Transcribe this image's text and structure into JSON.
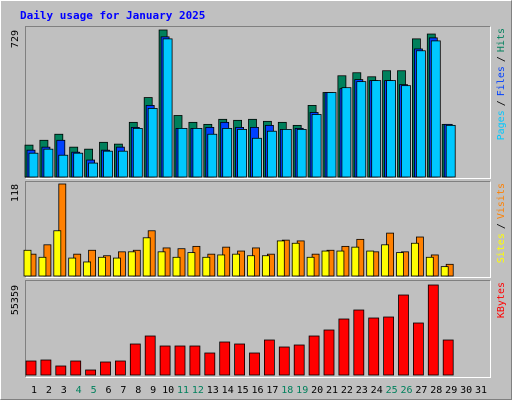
{
  "chart_data": [
    {
      "type": "bar",
      "title": "Daily usage for January 2025",
      "legend_separator": "/",
      "ylim": [
        0,
        729
      ],
      "yticks": [
        729
      ],
      "series": [
        {
          "name": "Hits",
          "color": "#00805c",
          "values": [
            158,
            182,
            212,
            148,
            138,
            172,
            163,
            271,
            394,
            729,
            305,
            271,
            261,
            286,
            281,
            286,
            276,
            271,
            256,
            355,
            419,
            502,
            517,
            497,
            527,
            527,
            685,
            709,
            261,
            null,
            null
          ]
        },
        {
          "name": "Files",
          "color": "#0040ff",
          "values": [
            133,
            148,
            182,
            123,
            84,
            133,
            148,
            246,
            355,
            695,
            241,
            241,
            246,
            271,
            246,
            246,
            256,
            236,
            241,
            320,
            419,
            438,
            483,
            478,
            478,
            458,
            635,
            690,
            261,
            null,
            null
          ]
        },
        {
          "name": "Pages",
          "color": "#00c8ff",
          "values": [
            118,
            138,
            108,
            118,
            69,
            128,
            128,
            241,
            340,
            685,
            241,
            241,
            212,
            241,
            236,
            192,
            227,
            236,
            236,
            310,
            419,
            443,
            473,
            478,
            478,
            453,
            626,
            675,
            256,
            null,
            null
          ]
        }
      ]
    },
    {
      "type": "bar",
      "legend_separator": "/",
      "ylim": [
        0,
        118
      ],
      "yticks": [
        118
      ],
      "series": [
        {
          "name": "Visits",
          "color": "#ff8000",
          "values": [
            28,
            40,
            118,
            28,
            33,
            26,
            31,
            33,
            58,
            36,
            35,
            38,
            28,
            37,
            32,
            36,
            28,
            46,
            45,
            28,
            33,
            38,
            47,
            31,
            55,
            31,
            50,
            27,
            15,
            null,
            null
          ]
        },
        {
          "name": "Sites",
          "color": "#ffff00",
          "values": [
            33,
            24,
            58,
            23,
            18,
            24,
            23,
            31,
            49,
            31,
            24,
            30,
            24,
            27,
            28,
            26,
            26,
            45,
            42,
            24,
            32,
            32,
            37,
            32,
            40,
            30,
            42,
            24,
            12,
            null,
            null
          ]
        }
      ]
    },
    {
      "type": "bar",
      "ylim": [
        0,
        55359
      ],
      "yticks": [
        55359
      ],
      "categories": [
        "1",
        "2",
        "3",
        "4",
        "5",
        "6",
        "7",
        "8",
        "9",
        "10",
        "11",
        "12",
        "13",
        "14",
        "15",
        "16",
        "17",
        "18",
        "19",
        "20",
        "21",
        "22",
        "23",
        "24",
        "25",
        "26",
        "27",
        "28",
        "29",
        "30",
        "31"
      ],
      "label_colors": [
        "#000000",
        "#000000",
        "#000000",
        "#00805c",
        "#00805c",
        "#000000",
        "#000000",
        "#000000",
        "#000000",
        "#000000",
        "#00805c",
        "#00805c",
        "#000000",
        "#000000",
        "#000000",
        "#000000",
        "#000000",
        "#00805c",
        "#00805c",
        "#000000",
        "#000000",
        "#000000",
        "#000000",
        "#000000",
        "#00805c",
        "#00805c",
        "#000000",
        "#000000",
        "#000000",
        "#000000",
        "#000000"
      ],
      "series": [
        {
          "name": "KBytes",
          "color": "#ff0000",
          "values": [
            8610,
            9225,
            5535,
            8610,
            3075,
            7995,
            8610,
            19065,
            23985,
            17835,
            17835,
            17835,
            13530,
            20295,
            19065,
            13530,
            21525,
            17220,
            18450,
            23985,
            27675,
            34440,
            39975,
            35055,
            35670,
            49200,
            31980,
            55359,
            21525,
            null,
            null
          ]
        }
      ]
    }
  ]
}
